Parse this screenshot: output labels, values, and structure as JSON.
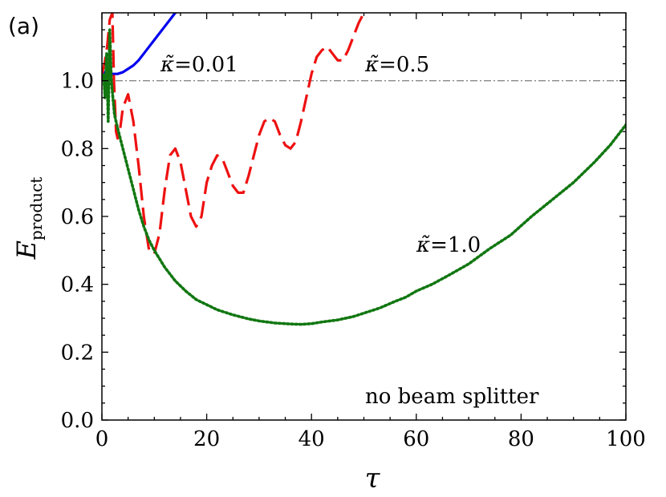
{
  "chart_data": {
    "type": "line",
    "panel_label": "(a)",
    "xlabel": "τ",
    "ylabel": "E",
    "ylabel_subscript": "product",
    "xlim": [
      0,
      100
    ],
    "ylim": [
      0,
      1.2
    ],
    "xticks": [
      0,
      20,
      40,
      60,
      80,
      100
    ],
    "xtick_labels": [
      "0",
      "20",
      "40",
      "60",
      "80",
      "100"
    ],
    "yticks": [
      0.0,
      0.2,
      0.4,
      0.6,
      0.8,
      1.0
    ],
    "ytick_labels": [
      "0.0",
      "0.2",
      "0.4",
      "0.6",
      "0.8",
      "1.0"
    ],
    "reference_line": {
      "y": 1.0,
      "style": "dashdot",
      "color": "#888888"
    },
    "annotation_text": "no beam splitter",
    "series": [
      {
        "name": "κ̃=0.01",
        "label_symbol": "κ̃",
        "label_value": "=0.01",
        "color": "#0000ee",
        "style": "solid",
        "x": [
          0,
          0.5,
          1,
          1.5,
          2,
          3,
          4,
          5,
          6,
          7,
          8,
          9,
          10,
          11,
          12,
          13,
          14,
          15
        ],
        "y": [
          1.02,
          1.025,
          1.02,
          1.017,
          1.02,
          1.02,
          1.025,
          1.035,
          1.045,
          1.06,
          1.08,
          1.1,
          1.12,
          1.14,
          1.16,
          1.18,
          1.2,
          1.21
        ]
      },
      {
        "name": "κ̃=0.5",
        "label_symbol": "κ̃",
        "label_value": "=0.5",
        "color": "#ee1111",
        "style": "dashed",
        "x": [
          0,
          0.5,
          1,
          1.5,
          2,
          2.3,
          2.7,
          3,
          3.5,
          4,
          5,
          6,
          7,
          8,
          9,
          10,
          11,
          12,
          13,
          14,
          15,
          16,
          17,
          18,
          19,
          20,
          21,
          22,
          23,
          24,
          25,
          26,
          27,
          28,
          29,
          30,
          31,
          32,
          33,
          34,
          35,
          36,
          37,
          38,
          39,
          40,
          41,
          42,
          43,
          44,
          45,
          46,
          47,
          48,
          49,
          50,
          51
        ],
        "y": [
          1.02,
          1.05,
          1.1,
          1.18,
          1.2,
          1.0,
          0.85,
          0.83,
          0.86,
          0.92,
          0.96,
          0.88,
          0.75,
          0.6,
          0.5,
          0.49,
          0.55,
          0.68,
          0.78,
          0.8,
          0.76,
          0.68,
          0.6,
          0.57,
          0.6,
          0.7,
          0.75,
          0.78,
          0.77,
          0.73,
          0.69,
          0.67,
          0.67,
          0.72,
          0.78,
          0.84,
          0.88,
          0.89,
          0.88,
          0.84,
          0.81,
          0.8,
          0.82,
          0.88,
          0.95,
          1.02,
          1.07,
          1.09,
          1.1,
          1.08,
          1.06,
          1.06,
          1.09,
          1.13,
          1.17,
          1.2,
          1.22
        ]
      },
      {
        "name": "κ̃=1.0",
        "label_symbol": "κ̃",
        "label_value": "=1.0",
        "color": "#117711",
        "style": "dotted",
        "x": [
          0,
          0.3,
          0.6,
          0.9,
          1.2,
          1.5,
          1.8,
          2.1,
          2.4,
          2.7,
          3,
          4,
          5,
          6,
          7,
          8,
          9,
          10,
          12,
          14,
          16,
          18,
          20,
          22,
          25,
          28,
          30,
          33,
          36,
          38,
          40,
          42,
          45,
          48,
          50,
          53,
          56,
          58,
          60,
          63,
          66,
          70,
          74,
          78,
          82,
          86,
          90,
          94,
          97,
          100
        ],
        "y": [
          1.0,
          1.02,
          0.95,
          1.08,
          0.88,
          1.15,
          1.0,
          0.95,
          0.9,
          0.88,
          0.86,
          0.8,
          0.74,
          0.68,
          0.62,
          0.57,
          0.53,
          0.5,
          0.45,
          0.41,
          0.38,
          0.355,
          0.34,
          0.325,
          0.31,
          0.298,
          0.292,
          0.286,
          0.283,
          0.282,
          0.284,
          0.289,
          0.295,
          0.305,
          0.315,
          0.33,
          0.35,
          0.362,
          0.38,
          0.4,
          0.425,
          0.46,
          0.505,
          0.545,
          0.6,
          0.65,
          0.7,
          0.76,
          0.81,
          0.87
        ]
      }
    ]
  }
}
